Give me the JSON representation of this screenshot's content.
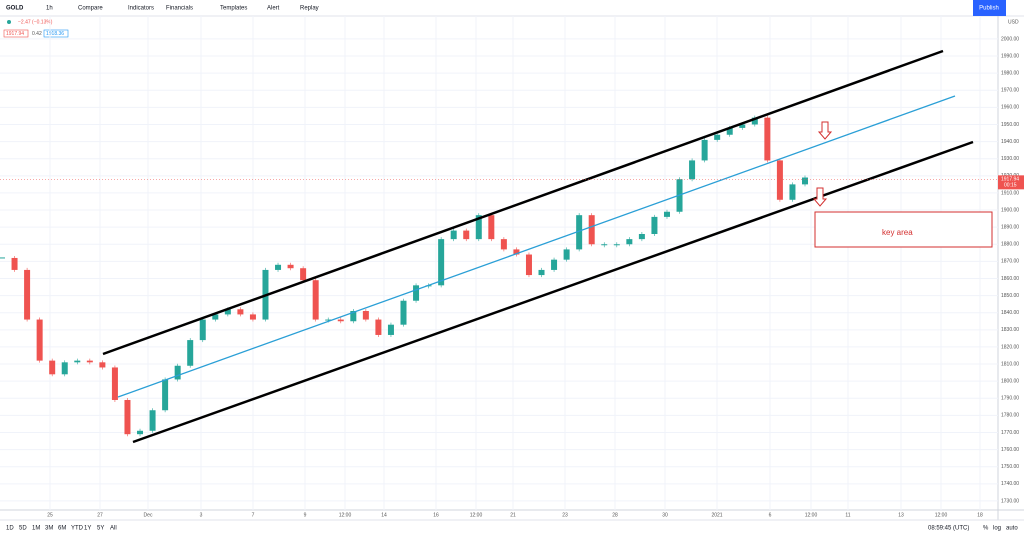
{
  "toolbar": {
    "symbol": "GOLD",
    "interval": "1h",
    "items": [
      "Compare",
      "Indicators",
      "Financials",
      "Templates",
      "Alert",
      "Replay"
    ],
    "publish": "Publish"
  },
  "legend": {
    "change": "−2.47 (−0.13%)",
    "bid": "1917.94",
    "spread": "0.42",
    "ask": "1918.36"
  },
  "chart_data": {
    "type": "candlestick",
    "values": [
      1872,
      1865,
      1836,
      1812,
      1804,
      1811,
      1812,
      1811,
      1808,
      1789,
      1769,
      1771,
      1783,
      1801,
      1809,
      1824,
      1836,
      1839,
      1842,
      1839,
      1836,
      1865,
      1868,
      1866,
      1859,
      1836,
      1836,
      1835,
      1841,
      1836,
      1827,
      1833,
      1847,
      1856,
      1856,
      1883,
      1888,
      1883,
      1897,
      1883,
      1877,
      1874,
      1862,
      1865,
      1871,
      1877,
      1897,
      1880,
      1880,
      1880,
      1883,
      1886,
      1896,
      1899,
      1918,
      1929,
      1941,
      1944,
      1948,
      1950,
      1954,
      1929,
      1906,
      1915,
      1919
    ],
    "up_color": "#26a69a",
    "down_color": "#ef5350",
    "ylim": [
      1724.7,
      2013.4
    ],
    "yticks": [
      {
        "value": 1730,
        "label": "1730.00"
      },
      {
        "value": 1740,
        "label": "1740.00"
      },
      {
        "value": 1750,
        "label": "1750.00"
      },
      {
        "value": 1760,
        "label": "1760.00"
      },
      {
        "value": 1770,
        "label": "1770.00"
      },
      {
        "value": 1780,
        "label": "1780.00"
      },
      {
        "value": 1790,
        "label": "1790.00"
      },
      {
        "value": 1800,
        "label": "1800.00"
      },
      {
        "value": 1810,
        "label": "1810.00"
      },
      {
        "value": 1820,
        "label": "1820.00"
      },
      {
        "value": 1830,
        "label": "1830.00"
      },
      {
        "value": 1840,
        "label": "1840.00"
      },
      {
        "value": 1850,
        "label": "1850.00"
      },
      {
        "value": 1860,
        "label": "1860.00"
      },
      {
        "value": 1870,
        "label": "1870.00"
      },
      {
        "value": 1880,
        "label": "1880.00"
      },
      {
        "value": 1890,
        "label": "1890.00"
      },
      {
        "value": 1900,
        "label": "1900.00"
      },
      {
        "value": 1910,
        "label": "1910.00"
      },
      {
        "value": 1920,
        "label": "1920.00"
      },
      {
        "value": 1930,
        "label": "1930.00"
      },
      {
        "value": 1940,
        "label": "1940.00"
      },
      {
        "value": 1950,
        "label": "1950.00"
      },
      {
        "value": 1960,
        "label": "1960.00"
      },
      {
        "value": 1970,
        "label": "1970.00"
      },
      {
        "value": 1980,
        "label": "1980.00"
      },
      {
        "value": 1990,
        "label": "1990.00"
      },
      {
        "value": 2000,
        "label": "2000.00"
      }
    ],
    "currency": "USD",
    "x_labels": [
      "25",
      "27",
      "Dec",
      "3",
      "7",
      "9",
      "12:00",
      "14",
      "16",
      "12:00",
      "21",
      "23",
      "28",
      "30",
      "2021",
      "6",
      "12:00",
      "11",
      "13",
      "12:00",
      "18"
    ],
    "last_price": {
      "value": 1917.94,
      "label": "1917.94",
      "countdown": "00:15"
    },
    "annotation": "key area"
  },
  "bottom_bar": {
    "ranges": [
      "1D",
      "5D",
      "1M",
      "3M",
      "6M",
      "YTD",
      "1Y",
      "5Y",
      "All"
    ],
    "clock": "08:59:45 (UTC)",
    "options": [
      "%",
      "log",
      "auto"
    ]
  }
}
